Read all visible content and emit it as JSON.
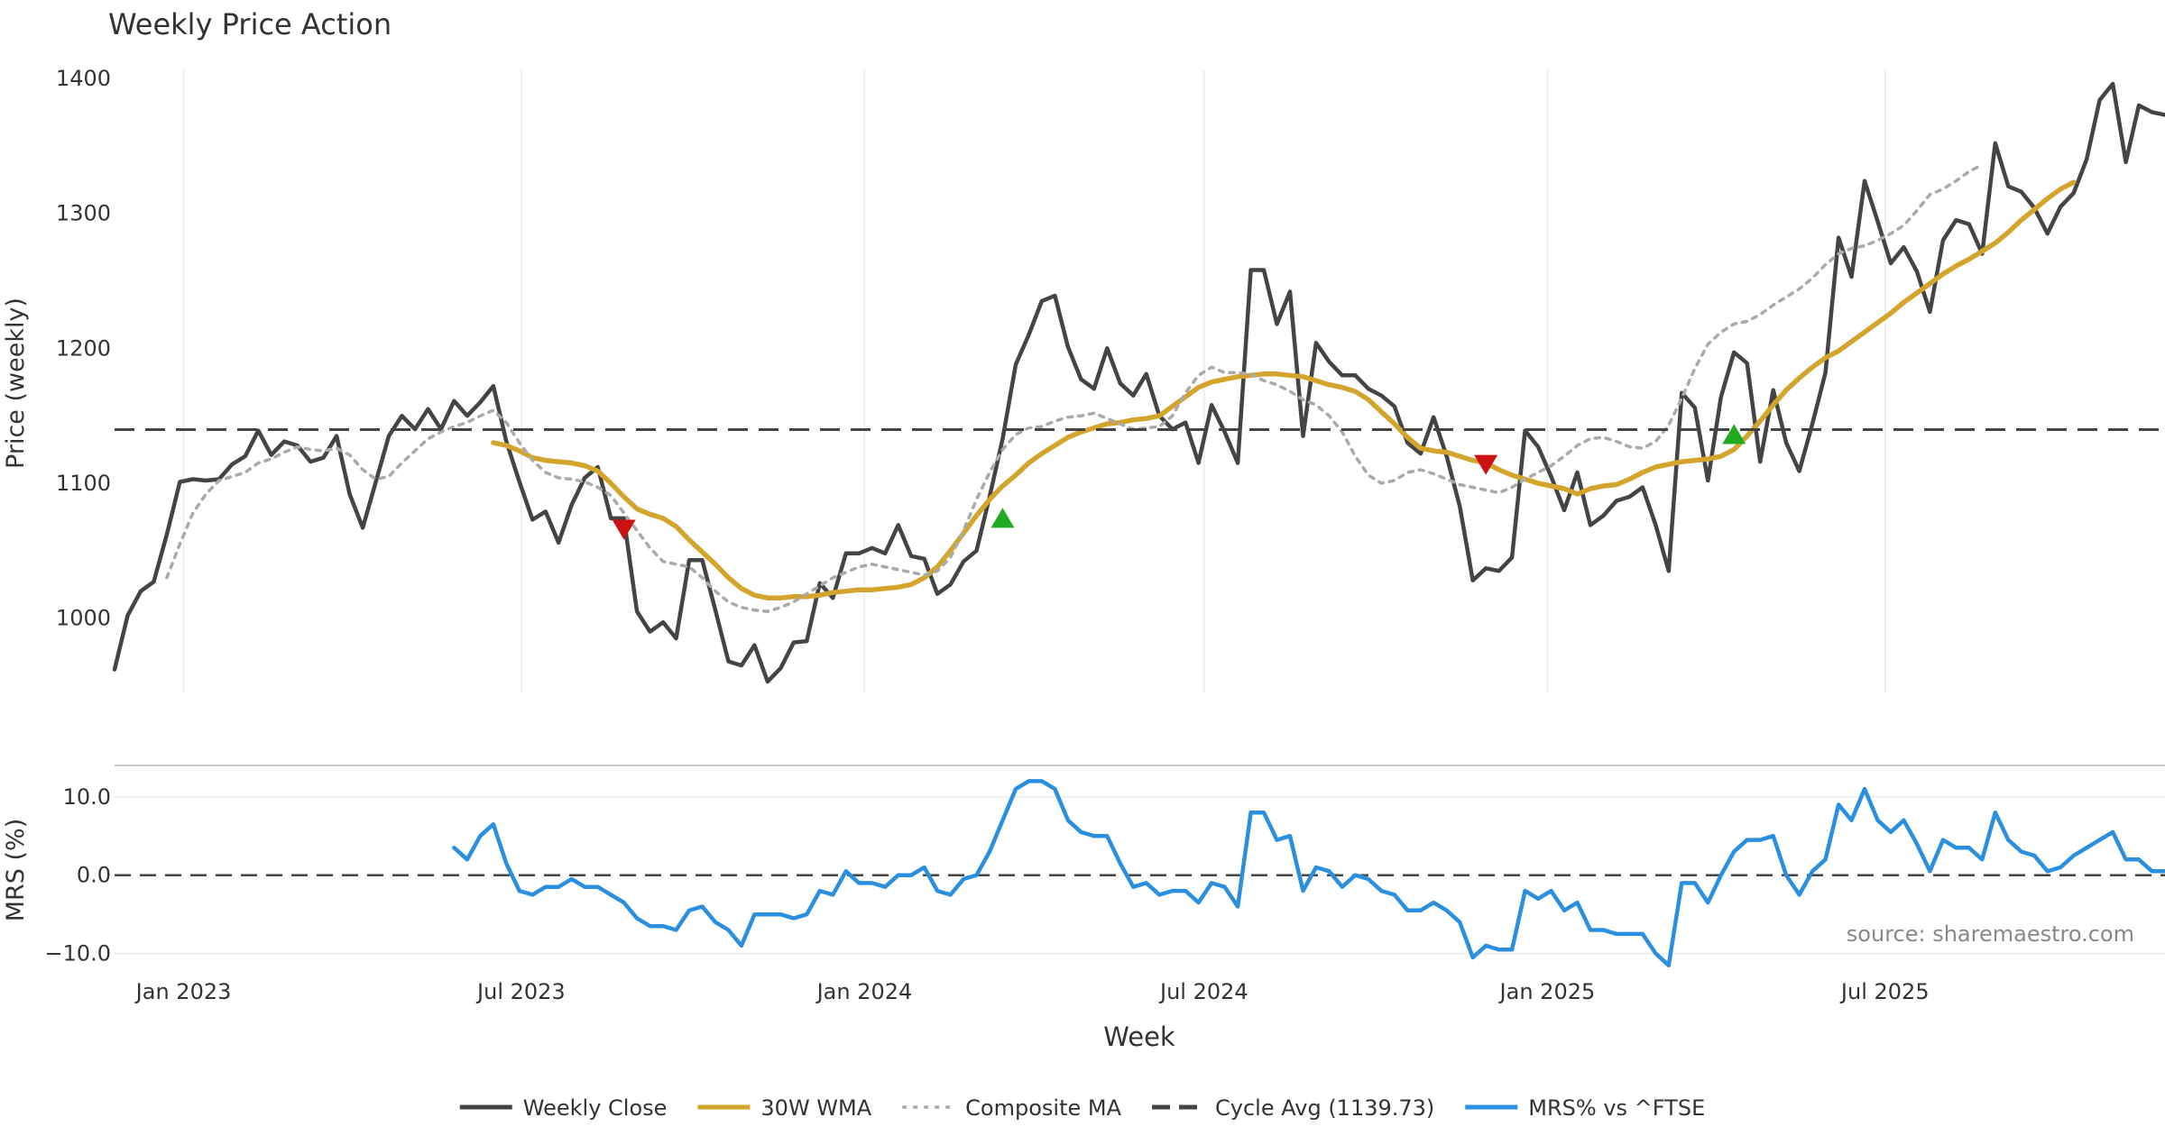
{
  "chart_data": [
    {
      "type": "line",
      "title": "Weekly Price Action",
      "ylabel": "Price (weekly)",
      "xlabel": "Week",
      "ylim": [
        945,
        1410
      ],
      "yticks": [
        1000,
        1100,
        1200,
        1300,
        1400
      ],
      "x_range": [
        "2022-11-25",
        "2025-11-28"
      ],
      "x_ticks": [
        {
          "date": "2023-01-01",
          "label": "Jan 2023"
        },
        {
          "date": "2023-07-01",
          "label": "Jul 2023"
        },
        {
          "date": "2024-01-01",
          "label": "Jan 2024"
        },
        {
          "date": "2024-07-01",
          "label": "Jul 2024"
        },
        {
          "date": "2025-01-01",
          "label": "Jan 2025"
        },
        {
          "date": "2025-07-01",
          "label": "Jul 2025"
        }
      ],
      "grid": "vertical",
      "series": [
        {
          "name": "Weekly Close",
          "color": "#444444",
          "style": "solid",
          "start_week": "2022-11-25",
          "values": [
            962,
            1002,
            1020,
            1027,
            1062,
            1101,
            1103,
            1102,
            1103,
            1114,
            1120,
            1139,
            1121,
            1131,
            1128,
            1116,
            1119,
            1135,
            1092,
            1067,
            1101,
            1135,
            1150,
            1140,
            1155,
            1140,
            1161,
            1150,
            1160,
            1172,
            1131,
            1101,
            1073,
            1079,
            1056,
            1084,
            1104,
            1112,
            1074,
            1074,
            1005,
            990,
            997,
            985,
            1043,
            1043,
            1006,
            968,
            965,
            980,
            953,
            963,
            982,
            983,
            1026,
            1015,
            1048,
            1048,
            1052,
            1048,
            1069,
            1046,
            1044,
            1018,
            1025,
            1042,
            1050,
            1090,
            1133,
            1188,
            1210,
            1235,
            1239,
            1201,
            1177,
            1170,
            1200,
            1174,
            1165,
            1181,
            1150,
            1140,
            1145,
            1115,
            1158,
            1138,
            1115,
            1258,
            1258,
            1218,
            1242,
            1135,
            1204,
            1190,
            1180,
            1180,
            1170,
            1165,
            1157,
            1130,
            1122,
            1149,
            1120,
            1083,
            1028,
            1037,
            1035,
            1045,
            1139,
            1127,
            1105,
            1080,
            1108,
            1069,
            1076,
            1087,
            1090,
            1097,
            1069,
            1035,
            1167,
            1156,
            1102,
            1164,
            1197,
            1189,
            1116,
            1169,
            1130,
            1109,
            1144,
            1182,
            1282,
            1253,
            1324,
            1294,
            1263,
            1275,
            1257,
            1227,
            1280,
            1295,
            1292,
            1270,
            1352,
            1320,
            1316,
            1304,
            1285,
            1305,
            1315,
            1340,
            1384,
            1396,
            1338,
            1380,
            1375,
            1373
          ]
        },
        {
          "name": "30W WMA",
          "color": "#d4a52c",
          "style": "solid",
          "start_week": "2023-06-16",
          "values": [
            1130,
            1128,
            1124,
            1119,
            1117,
            1116,
            1115,
            1113,
            1109,
            1100,
            1090,
            1081,
            1077,
            1074,
            1068,
            1058,
            1049,
            1040,
            1030,
            1022,
            1017,
            1015,
            1015,
            1016,
            1016,
            1017,
            1019,
            1020,
            1021,
            1021,
            1022,
            1023,
            1025,
            1030,
            1038,
            1050,
            1063,
            1076,
            1088,
            1098,
            1106,
            1115,
            1122,
            1128,
            1134,
            1138,
            1141,
            1144,
            1145,
            1147,
            1148,
            1150,
            1157,
            1164,
            1171,
            1175,
            1177,
            1179,
            1180,
            1181,
            1181,
            1180,
            1179,
            1176,
            1173,
            1171,
            1168,
            1162,
            1153,
            1144,
            1134,
            1126,
            1124,
            1123,
            1120,
            1117,
            1115,
            1110,
            1106,
            1103,
            1100,
            1098,
            1096,
            1092,
            1096,
            1098,
            1099,
            1103,
            1108,
            1112,
            1114,
            1116,
            1117,
            1118,
            1120,
            1125,
            1135,
            1146,
            1158,
            1169,
            1178,
            1186,
            1193,
            1198,
            1205,
            1212,
            1219,
            1226,
            1234,
            1241,
            1248,
            1255,
            1261,
            1266,
            1272,
            1278,
            1286,
            1295,
            1303,
            1311,
            1318,
            1323
          ]
        },
        {
          "name": "Composite MA",
          "color": "#aaaaaa",
          "style": "dotted",
          "start_week": "2022-12-23",
          "values": [
            1030,
            1055,
            1078,
            1092,
            1102,
            1105,
            1108,
            1115,
            1118,
            1123,
            1127,
            1125,
            1124,
            1126,
            1121,
            1110,
            1103,
            1105,
            1115,
            1124,
            1133,
            1138,
            1142,
            1145,
            1150,
            1154,
            1145,
            1130,
            1117,
            1108,
            1104,
            1103,
            1101,
            1097,
            1091,
            1078,
            1065,
            1052,
            1042,
            1040,
            1038,
            1030,
            1020,
            1012,
            1008,
            1006,
            1005,
            1008,
            1012,
            1018,
            1024,
            1030,
            1034,
            1038,
            1040,
            1038,
            1036,
            1034,
            1032,
            1035,
            1045,
            1065,
            1088,
            1108,
            1125,
            1136,
            1141,
            1142,
            1146,
            1149,
            1150,
            1152,
            1148,
            1144,
            1140,
            1141,
            1142,
            1150,
            1167,
            1180,
            1186,
            1182,
            1182,
            1181,
            1176,
            1173,
            1168,
            1162,
            1158,
            1150,
            1138,
            1120,
            1106,
            1100,
            1102,
            1108,
            1110,
            1107,
            1103,
            1099,
            1097,
            1095,
            1093,
            1097,
            1103,
            1108,
            1113,
            1120,
            1128,
            1133,
            1134,
            1131,
            1127,
            1126,
            1131,
            1143,
            1163,
            1185,
            1203,
            1212,
            1218,
            1220,
            1225,
            1232,
            1238,
            1244,
            1252,
            1262,
            1270,
            1274,
            1276,
            1280,
            1285,
            1291,
            1302,
            1314,
            1318,
            1324,
            1331,
            1336
          ]
        },
        {
          "name": "Cycle Avg (1139.73)",
          "color": "#444444",
          "style": "dashed",
          "value": 1139.73
        }
      ],
      "markers": [
        {
          "date": "2023-08-25",
          "price": 1066,
          "direction": "down",
          "color": "#cc1111"
        },
        {
          "date": "2024-03-15",
          "price": 1074,
          "direction": "up",
          "color": "#22aa22"
        },
        {
          "date": "2024-11-29",
          "price": 1114,
          "direction": "down",
          "color": "#cc1111"
        },
        {
          "date": "2025-04-11",
          "price": 1136,
          "direction": "up",
          "color": "#22aa22"
        }
      ]
    },
    {
      "type": "line",
      "ylabel": "MRS (%)",
      "ylim": [
        -12,
        14
      ],
      "yticks": [
        {
          "value": 10,
          "label": "10.0"
        },
        {
          "value": 0,
          "label": "0.0"
        },
        {
          "value": -10,
          "label": "−10.0"
        }
      ],
      "zero_line": "dashed",
      "series": [
        {
          "name": "MRS% vs ^FTSE",
          "color": "#2b8fe0",
          "style": "solid",
          "start_week": "2023-05-26",
          "values": [
            3.5,
            2.0,
            5.0,
            6.5,
            1.5,
            -2.0,
            -2.5,
            -1.5,
            -1.5,
            -0.5,
            -1.5,
            -1.5,
            -2.5,
            -3.5,
            -5.5,
            -6.5,
            -6.5,
            -7.0,
            -4.5,
            -4.0,
            -6.0,
            -7.0,
            -9.0,
            -5.0,
            -5.0,
            -5.0,
            -5.5,
            -5.0,
            -2.0,
            -2.5,
            0.5,
            -1.0,
            -1.0,
            -1.5,
            0.0,
            0.0,
            1.0,
            -2.0,
            -2.5,
            -0.5,
            0.0,
            3.0,
            7.0,
            11.0,
            12.0,
            12.0,
            11.0,
            7.0,
            5.5,
            5.0,
            5.0,
            1.5,
            -1.5,
            -1.0,
            -2.5,
            -2.0,
            -2.0,
            -3.5,
            -1.0,
            -1.5,
            -4.0,
            8.0,
            8.0,
            4.5,
            5.0,
            -2.0,
            1.0,
            0.5,
            -1.5,
            0.0,
            -0.5,
            -2.0,
            -2.5,
            -4.5,
            -4.5,
            -3.5,
            -4.5,
            -6.0,
            -10.5,
            -9.0,
            -9.5,
            -9.5,
            -2.0,
            -3.0,
            -2.0,
            -4.5,
            -3.5,
            -7.0,
            -7.0,
            -7.5,
            -7.5,
            -7.5,
            -10.0,
            -11.5,
            -1.0,
            -1.0,
            -3.5,
            0.0,
            3.0,
            4.5,
            4.5,
            5.0,
            0.0,
            -2.5,
            0.5,
            2.0,
            9.0,
            7.0,
            11.0,
            7.0,
            5.5,
            7.0,
            4.0,
            0.5,
            4.5,
            3.5,
            3.5,
            2.0,
            8.0,
            4.5,
            3.0,
            2.5,
            0.5,
            1.0,
            2.5,
            3.5,
            4.5,
            5.5,
            2.0,
            2.0,
            0.5,
            0.5
          ]
        }
      ],
      "annotation": "source: sharemaestro.com"
    }
  ]
}
